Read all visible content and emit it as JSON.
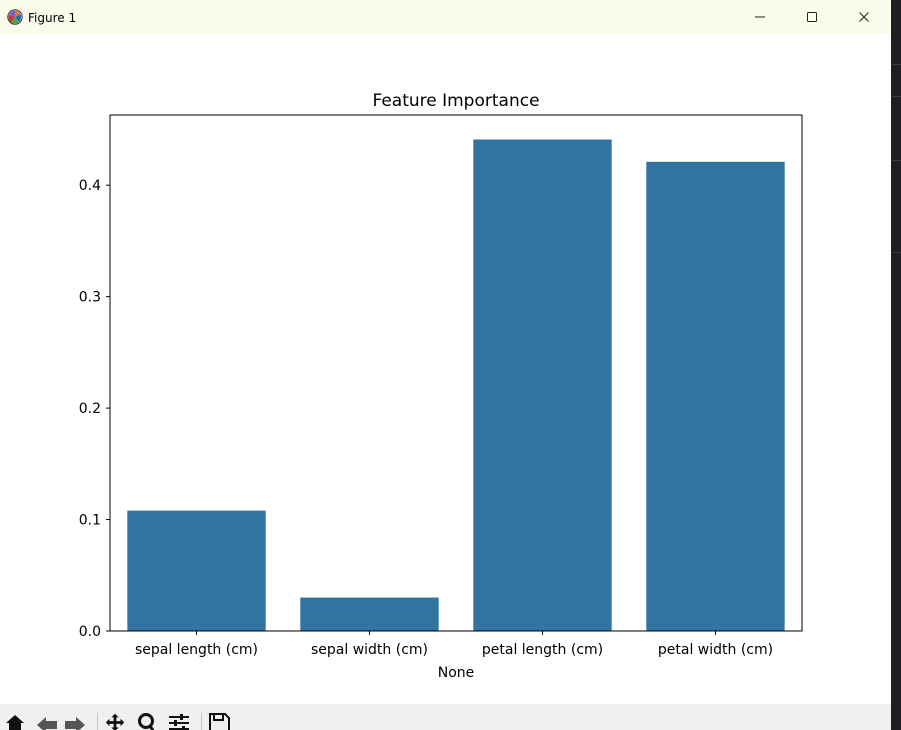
{
  "window": {
    "title": "Figure 1",
    "icon": "matplotlib-logo-icon",
    "controls": [
      "minimize-icon",
      "maximize-icon",
      "close-icon"
    ]
  },
  "chart_data": {
    "type": "bar",
    "title": "Feature Importance",
    "xlabel": "None",
    "ylabel": "",
    "categories": [
      "sepal length (cm)",
      "sepal width (cm)",
      "petal length (cm)",
      "petal width (cm)"
    ],
    "values": [
      0.108,
      0.03,
      0.441,
      0.421
    ],
    "ylim": [
      0,
      0.463
    ],
    "yticks": [
      0.0,
      0.1,
      0.2,
      0.3,
      0.4
    ],
    "ytick_labels": [
      "0.0",
      "0.1",
      "0.2",
      "0.3",
      "0.4"
    ],
    "bar_color": "#3274a1",
    "grid": false,
    "legend": "none"
  },
  "toolbar": {
    "icons": [
      "home-icon",
      "back-icon",
      "forward-icon",
      "pan-icon",
      "zoom-icon",
      "configure-subplots-icon",
      "save-icon"
    ]
  }
}
